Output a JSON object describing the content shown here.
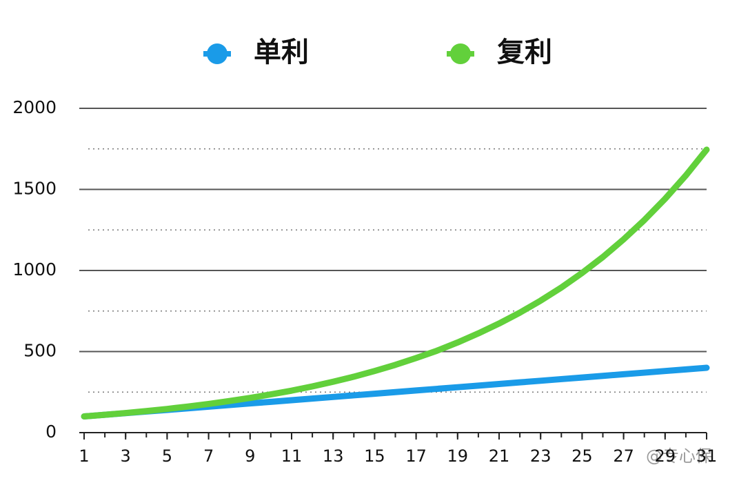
{
  "chart_data": {
    "type": "line",
    "x": [
      1,
      2,
      3,
      4,
      5,
      6,
      7,
      8,
      9,
      10,
      11,
      12,
      13,
      14,
      15,
      16,
      17,
      18,
      19,
      20,
      21,
      22,
      23,
      24,
      25,
      26,
      27,
      28,
      29,
      30,
      31
    ],
    "series": [
      {
        "name": "单利",
        "color": "#1a9be8",
        "values": [
          100,
          110,
          120,
          130,
          140,
          150,
          160,
          170,
          180,
          190,
          200,
          210,
          220,
          230,
          240,
          250,
          260,
          270,
          280,
          290,
          300,
          310,
          320,
          330,
          340,
          350,
          360,
          370,
          380,
          390,
          400
        ]
      },
      {
        "name": "复利",
        "color": "#62d03b",
        "values": [
          100,
          110,
          121,
          133,
          146,
          161,
          177,
          195,
          214,
          236,
          259,
          285,
          314,
          345,
          380,
          418,
          460,
          505,
          556,
          612,
          673,
          740,
          814,
          895,
          985,
          1083,
          1192,
          1311,
          1442,
          1586,
          1745
        ]
      }
    ],
    "xlim": [
      1,
      31
    ],
    "xticks": [
      1,
      3,
      5,
      7,
      9,
      11,
      13,
      15,
      17,
      19,
      21,
      23,
      25,
      27,
      29,
      31
    ],
    "ylim": [
      0,
      2000
    ],
    "yticks": [
      0,
      500,
      1000,
      1500,
      2000
    ],
    "minor_yticks": [
      250,
      750,
      1250,
      1750
    ],
    "grid": true,
    "legend": "top",
    "watermark": "@专心保"
  }
}
